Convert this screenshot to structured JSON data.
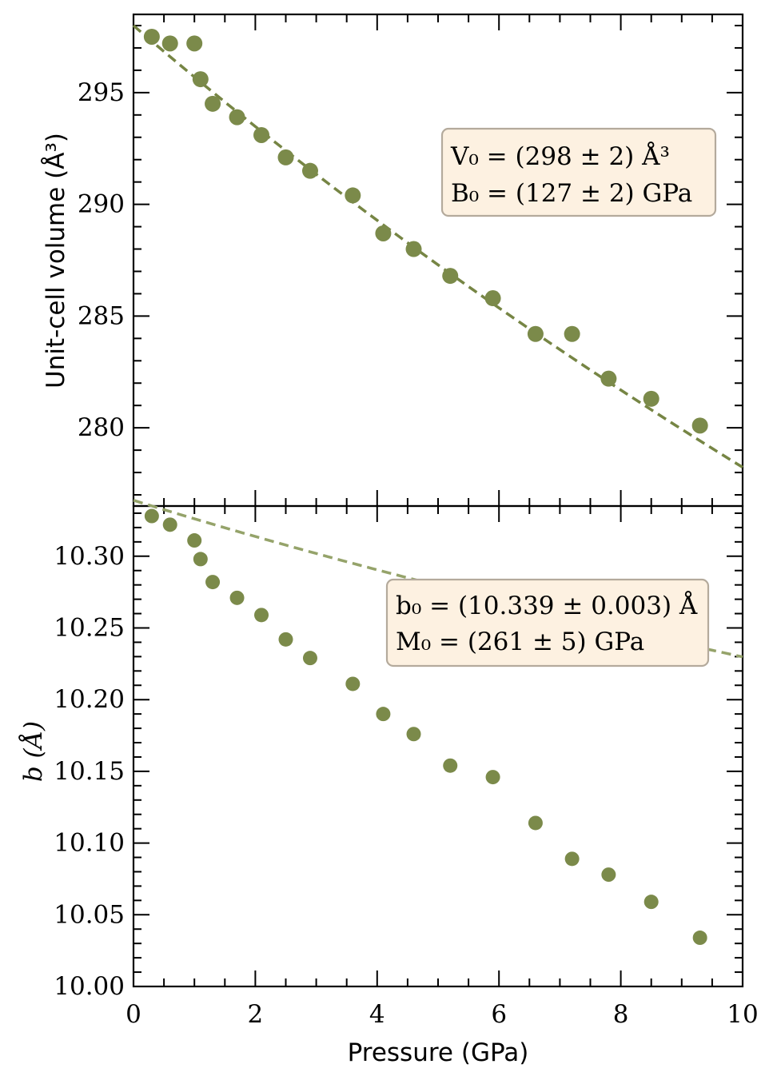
{
  "colors": {
    "marker": "#7b8a4a",
    "fit_top": "#768544",
    "fit_bottom": "#95a36a",
    "box_fill": "#fdf1e1",
    "box_edge": "#b4aa9c",
    "axis": "#000000"
  },
  "chart_data": [
    {
      "type": "scatter",
      "panel": "top",
      "ylabel": "Unit-cell volume (Å³)",
      "xlim": [
        0,
        10
      ],
      "ylim": [
        276.5,
        298.5
      ],
      "yticks": [
        280,
        285,
        290,
        295
      ],
      "ytick_labels": [
        "280",
        "285",
        "290",
        "295"
      ],
      "x": [
        0.3,
        0.6,
        1.0,
        1.1,
        1.3,
        1.7,
        2.1,
        2.5,
        2.9,
        3.6,
        4.1,
        4.6,
        5.2,
        5.9,
        6.6,
        7.2,
        7.8,
        8.5,
        9.3
      ],
      "y": [
        297.5,
        297.2,
        297.2,
        295.6,
        294.5,
        293.9,
        293.1,
        292.1,
        291.5,
        290.4,
        288.7,
        288.0,
        286.8,
        285.8,
        284.2,
        284.2,
        282.2,
        281.3,
        280.1
      ],
      "fit": {
        "model": "Birch-Murnaghan",
        "x0": 298,
        "k0": 127,
        "kp": 4
      },
      "annotation": [
        "V₀ = (298 ± 2) Å³",
        "B₀ = (127 ± 2) GPa"
      ],
      "annotation_position": "upper-right"
    },
    {
      "type": "scatter",
      "panel": "bottom",
      "ylabel": "b (Å)",
      "xlabel": "Pressure (GPa)",
      "xlim": [
        0,
        10
      ],
      "ylim": [
        10.0,
        10.335
      ],
      "xticks": [
        0,
        2,
        4,
        6,
        8,
        10
      ],
      "xtick_labels": [
        "0",
        "2",
        "4",
        "6",
        "8",
        "10"
      ],
      "yticks": [
        10.0,
        10.05,
        10.1,
        10.15,
        10.2,
        10.25,
        10.3
      ],
      "ytick_labels": [
        "10.00",
        "10.05",
        "10.10",
        "10.15",
        "10.20",
        "10.25",
        "10.30"
      ],
      "x": [
        0.3,
        0.6,
        1.0,
        1.1,
        1.3,
        1.7,
        2.1,
        2.5,
        2.9,
        3.6,
        4.1,
        4.6,
        5.2,
        5.9,
        6.6,
        7.2,
        7.8,
        8.5,
        9.3
      ],
      "y": [
        10.328,
        10.322,
        10.311,
        10.298,
        10.282,
        10.271,
        10.259,
        10.242,
        10.229,
        10.211,
        10.19,
        10.176,
        10.154,
        10.146,
        10.114,
        10.089,
        10.078,
        10.059,
        10.034
      ],
      "fit": {
        "model": "linear-Birch-Murnaghan",
        "x0": 10.339,
        "k0": 261,
        "kp": 12
      },
      "annotation": [
        "b₀ = (10.339 ± 0.003) Å",
        "M₀ = (261 ± 5) GPa"
      ],
      "annotation_position": "upper-right"
    }
  ]
}
